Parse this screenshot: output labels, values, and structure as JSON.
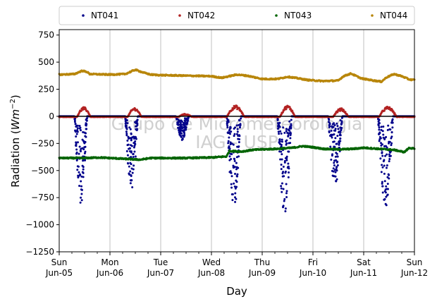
{
  "chart_data": {
    "type": "scatter",
    "xlabel": "Day",
    "ylabel": "Radiation",
    "ylabel_unit_base": "Wm",
    "ylabel_unit_exp": "−2",
    "ylim": [
      -1250,
      800
    ],
    "xlim": [
      0,
      7
    ],
    "yticks": [
      {
        "value": 750,
        "label": "750"
      },
      {
        "value": 500,
        "label": "500"
      },
      {
        "value": 250,
        "label": "250"
      },
      {
        "value": 0,
        "label": "0"
      },
      {
        "value": -250,
        "label": "−250"
      },
      {
        "value": -500,
        "label": "−500"
      },
      {
        "value": -750,
        "label": "−750"
      },
      {
        "value": -1000,
        "label": "−1000"
      },
      {
        "value": -1250,
        "label": "−1250"
      }
    ],
    "xticks": [
      {
        "value": 0,
        "line1": "Sun",
        "line2": "Jun-05"
      },
      {
        "value": 1,
        "line1": "Mon",
        "line2": "Jun-06"
      },
      {
        "value": 2,
        "line1": "Tue",
        "line2": "Jun-07"
      },
      {
        "value": 3,
        "line1": "Wed",
        "line2": "Jun-08"
      },
      {
        "value": 4,
        "line1": "Thu",
        "line2": "Jun-09"
      },
      {
        "value": 5,
        "line1": "Fri",
        "line2": "Jun-10"
      },
      {
        "value": 6,
        "line1": "Sat",
        "line2": "Jun-11"
      },
      {
        "value": 7,
        "line1": "Sun",
        "line2": "Jun-12"
      }
    ],
    "grid": "vertical",
    "legend_placement": "top",
    "watermark_line1": "Grupo de Micrometeorologia",
    "watermark_line2": "IAG - USP",
    "series": [
      {
        "name": "NT041",
        "color": "#00008b",
        "style": "daily-dips",
        "night_value": 0,
        "daily_dips": [
          {
            "start": 0.3,
            "end": 0.55,
            "min": -820
          },
          {
            "start": 1.3,
            "end": 1.55,
            "min": -720
          },
          {
            "start": 2.3,
            "end": 2.55,
            "min": -220
          },
          {
            "start": 3.3,
            "end": 3.58,
            "min": -870
          },
          {
            "start": 4.3,
            "end": 4.58,
            "min": -910
          },
          {
            "start": 5.3,
            "end": 5.58,
            "min": -660
          },
          {
            "start": 6.28,
            "end": 6.58,
            "min": -840
          }
        ]
      },
      {
        "name": "NT042",
        "color": "#b22222",
        "style": "daily-bumps",
        "night_value": -5,
        "daily_bumps": [
          {
            "start": 0.35,
            "end": 0.62,
            "max": 80
          },
          {
            "start": 1.35,
            "end": 1.62,
            "max": 75
          },
          {
            "start": 2.35,
            "end": 2.62,
            "max": 20
          },
          {
            "start": 3.3,
            "end": 3.65,
            "max": 95
          },
          {
            "start": 4.35,
            "end": 4.65,
            "max": 95
          },
          {
            "start": 5.4,
            "end": 5.7,
            "max": 70
          },
          {
            "start": 6.3,
            "end": 6.65,
            "max": 85
          }
        ]
      },
      {
        "name": "NT043",
        "color": "#006400",
        "style": "piecewise",
        "points": [
          [
            0,
            -385
          ],
          [
            0.5,
            -385
          ],
          [
            0.8,
            -380
          ],
          [
            1.0,
            -385
          ],
          [
            1.2,
            -390
          ],
          [
            1.6,
            -400
          ],
          [
            1.8,
            -385
          ],
          [
            2.0,
            -385
          ],
          [
            2.5,
            -385
          ],
          [
            3.0,
            -380
          ],
          [
            3.3,
            -370
          ],
          [
            3.35,
            -320
          ],
          [
            3.6,
            -325
          ],
          [
            3.8,
            -310
          ],
          [
            4.0,
            -305
          ],
          [
            4.3,
            -300
          ],
          [
            4.6,
            -290
          ],
          [
            4.8,
            -275
          ],
          [
            5.0,
            -285
          ],
          [
            5.2,
            -300
          ],
          [
            5.5,
            -305
          ],
          [
            5.8,
            -300
          ],
          [
            6.0,
            -290
          ],
          [
            6.3,
            -300
          ],
          [
            6.6,
            -310
          ],
          [
            6.8,
            -330
          ],
          [
            6.9,
            -290
          ],
          [
            7.0,
            -300
          ]
        ]
      },
      {
        "name": "NT044",
        "color": "#b8860b",
        "style": "piecewise",
        "points": [
          [
            0,
            385
          ],
          [
            0.3,
            390
          ],
          [
            0.45,
            420
          ],
          [
            0.55,
            410
          ],
          [
            0.6,
            390
          ],
          [
            1.0,
            385
          ],
          [
            1.3,
            390
          ],
          [
            1.5,
            430
          ],
          [
            1.65,
            405
          ],
          [
            1.8,
            385
          ],
          [
            2.0,
            380
          ],
          [
            2.5,
            375
          ],
          [
            3.0,
            370
          ],
          [
            3.2,
            355
          ],
          [
            3.5,
            385
          ],
          [
            3.7,
            375
          ],
          [
            3.9,
            355
          ],
          [
            4.0,
            345
          ],
          [
            4.3,
            345
          ],
          [
            4.5,
            365
          ],
          [
            4.65,
            355
          ],
          [
            4.9,
            335
          ],
          [
            5.2,
            325
          ],
          [
            5.5,
            330
          ],
          [
            5.6,
            370
          ],
          [
            5.75,
            395
          ],
          [
            5.95,
            350
          ],
          [
            6.2,
            330
          ],
          [
            6.35,
            320
          ],
          [
            6.45,
            360
          ],
          [
            6.6,
            390
          ],
          [
            6.75,
            370
          ],
          [
            6.9,
            340
          ],
          [
            7.0,
            335
          ]
        ]
      }
    ]
  }
}
